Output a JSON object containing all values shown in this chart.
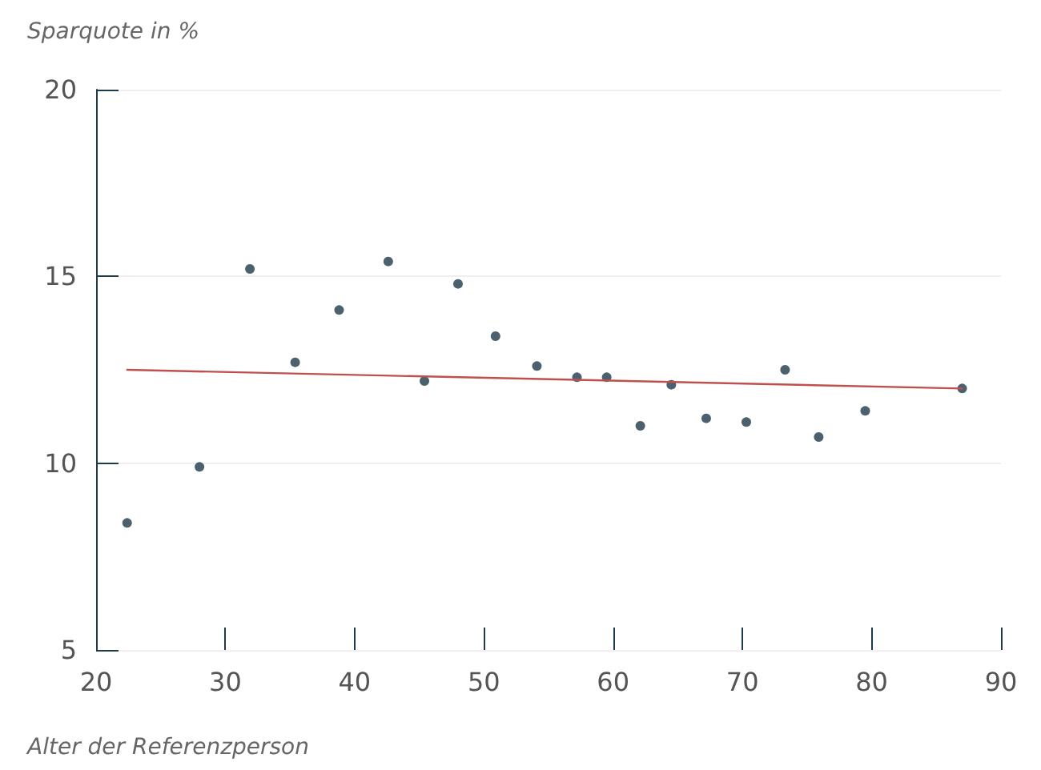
{
  "chart_data": {
    "type": "scatter",
    "xlabel": "Alter der Referenzperson",
    "ylabel": "Sparquote in %",
    "xlim": [
      20,
      90
    ],
    "xticks": [
      20,
      30,
      40,
      50,
      60,
      70,
      80,
      90
    ],
    "ylim": [
      5,
      20
    ],
    "yticks": [
      5,
      10,
      15,
      20
    ],
    "grid": "y",
    "series": [
      {
        "type": "scatter",
        "marker": "circle",
        "color": "#1f3a4a",
        "x": [
          22.4,
          28.0,
          31.9,
          35.4,
          38.8,
          42.6,
          45.4,
          48.0,
          50.9,
          54.1,
          57.2,
          59.5,
          62.1,
          64.5,
          67.2,
          70.3,
          73.3,
          75.9,
          79.5,
          87.0
        ],
        "values": [
          8.4,
          9.9,
          15.2,
          12.7,
          14.1,
          15.4,
          12.2,
          14.8,
          13.4,
          12.6,
          12.3,
          12.3,
          11.0,
          12.1,
          11.2,
          11.1,
          12.5,
          10.7,
          11.4,
          12.0
        ]
      },
      {
        "type": "line",
        "color": "#c0504d",
        "x": [
          22.4,
          87.0
        ],
        "values": [
          12.5,
          12.0
        ]
      }
    ]
  }
}
